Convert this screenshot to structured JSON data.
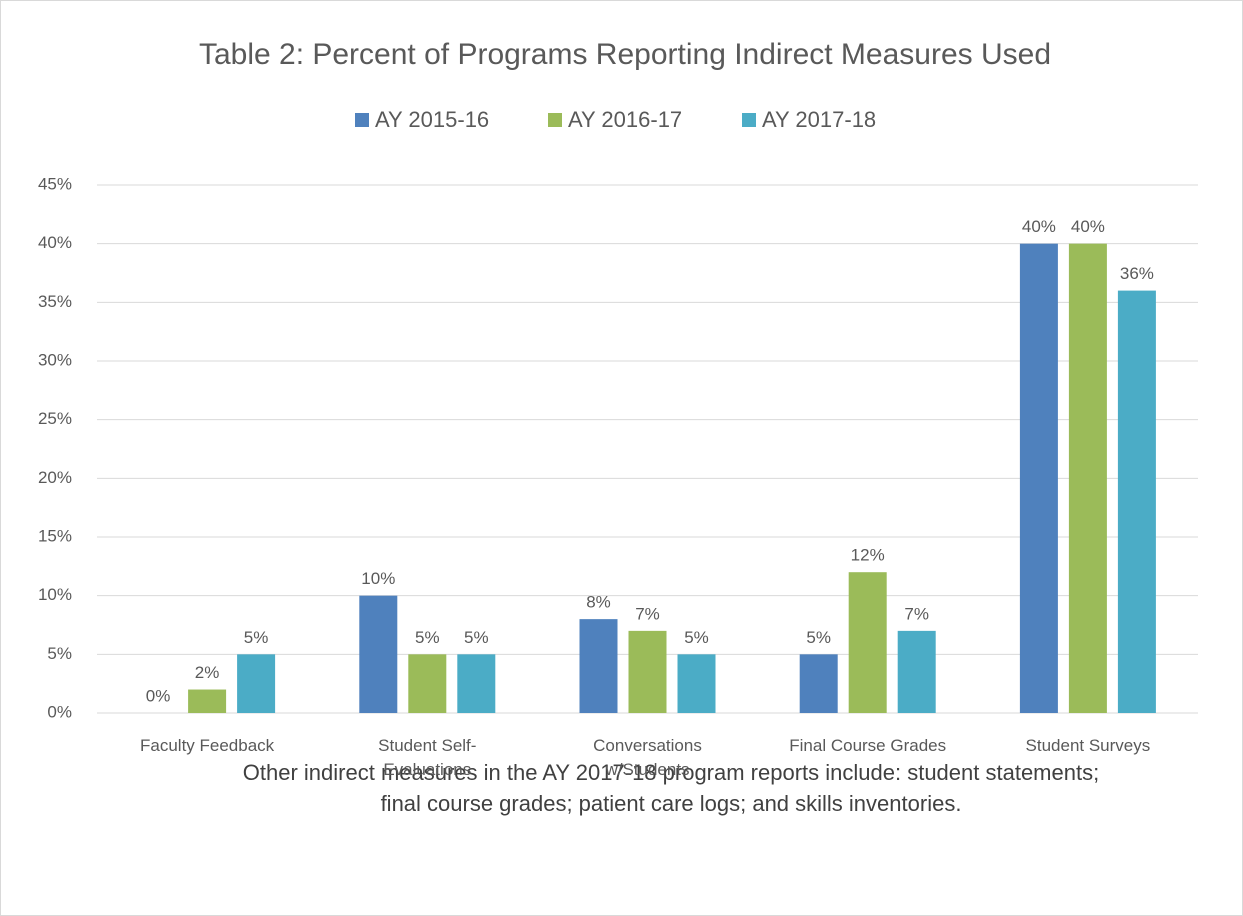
{
  "chart_data": {
    "type": "bar",
    "title": "Table 2: Percent of Programs Reporting Indirect Measures Used",
    "categories": [
      "Faculty Feedback",
      "Student Self-\nEvaluations",
      "Conversations\nw/Students",
      "Final Course Grades",
      "Student Surveys"
    ],
    "series": [
      {
        "name": "AY 2015-16",
        "color": "#4f81bd",
        "values": [
          0,
          10,
          8,
          5,
          40
        ],
        "value_labels": [
          "0%",
          "10%",
          "8%",
          "5%",
          "40%"
        ]
      },
      {
        "name": "AY 2016-17",
        "color": "#9bbb59",
        "values": [
          2,
          5,
          7,
          12,
          40
        ],
        "value_labels": [
          "2%",
          "5%",
          "7%",
          "12%",
          "40%"
        ]
      },
      {
        "name": "AY 2017-18",
        "color": "#4bacc6",
        "values": [
          5,
          5,
          5,
          7,
          36
        ],
        "value_labels": [
          "5%",
          "5%",
          "5%",
          "7%",
          "36%"
        ]
      }
    ],
    "ylim": [
      0,
      45
    ],
    "yticks": [
      {
        "value": 0,
        "label": "0%"
      },
      {
        "value": 5,
        "label": "5%"
      },
      {
        "value": 10,
        "label": "10%"
      },
      {
        "value": 15,
        "label": "15%"
      },
      {
        "value": 20,
        "label": "20%"
      },
      {
        "value": 25,
        "label": "25%"
      },
      {
        "value": 30,
        "label": "30%"
      },
      {
        "value": 35,
        "label": "35%"
      },
      {
        "value": 40,
        "label": "40%"
      },
      {
        "value": 45,
        "label": "45%"
      }
    ],
    "grid": true,
    "legend": "top",
    "annotation": "Other indirect measures in the AY 2017-18 program reports include: student statements; final course grades; patient care logs; and skills inventories."
  }
}
